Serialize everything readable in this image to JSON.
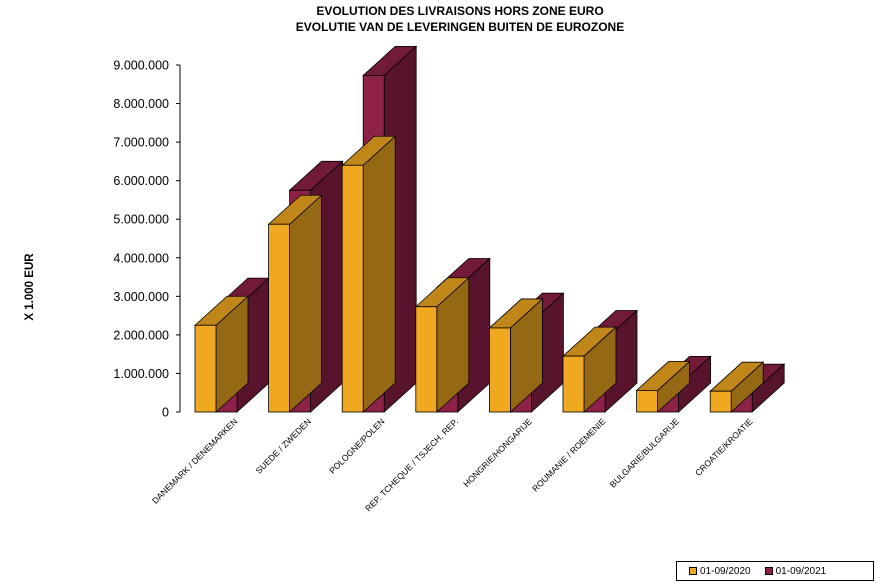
{
  "chart_data": {
    "type": "bar",
    "title": "EVOLUTION DES LIVRAISONS  HORS ZONE EURO",
    "subtitle": "EVOLUTIE VAN DE LEVERINGEN BUITEN DE EUROZONE",
    "ylabel": "X 1.000 EUR",
    "xlabel": "",
    "ylim": [
      0,
      9000000
    ],
    "yticks": [
      "0",
      "1.000.000",
      "2.000.000",
      "3.000.000",
      "4.000.000",
      "5.000.000",
      "6.000.000",
      "7.000.000",
      "8.000.000",
      "9.000.000"
    ],
    "categories": [
      "DANEMARK / DENEMARKEN",
      "SUEDE / ZWEDEN",
      "POLOGNE/POLEN",
      "REP. TCHEQUE / TSJECH. REP.",
      "HONGRIE/HONGARIJE",
      "ROUMANIE / ROEMENIE",
      "BULGARIE/BULGARIJE",
      "CROATIE/KROATIE"
    ],
    "series": [
      {
        "name": "01-09/2020",
        "color": "#f0a820",
        "values": [
          2250000,
          4870000,
          6400000,
          2730000,
          2180000,
          1450000,
          560000,
          540000
        ]
      },
      {
        "name": "01-09/2021",
        "color": "#8e2148",
        "values": [
          2720000,
          5750000,
          8730000,
          3230000,
          2330000,
          1880000,
          690000,
          490000
        ]
      }
    ],
    "grid": false,
    "legend_position": "bottom-right"
  }
}
